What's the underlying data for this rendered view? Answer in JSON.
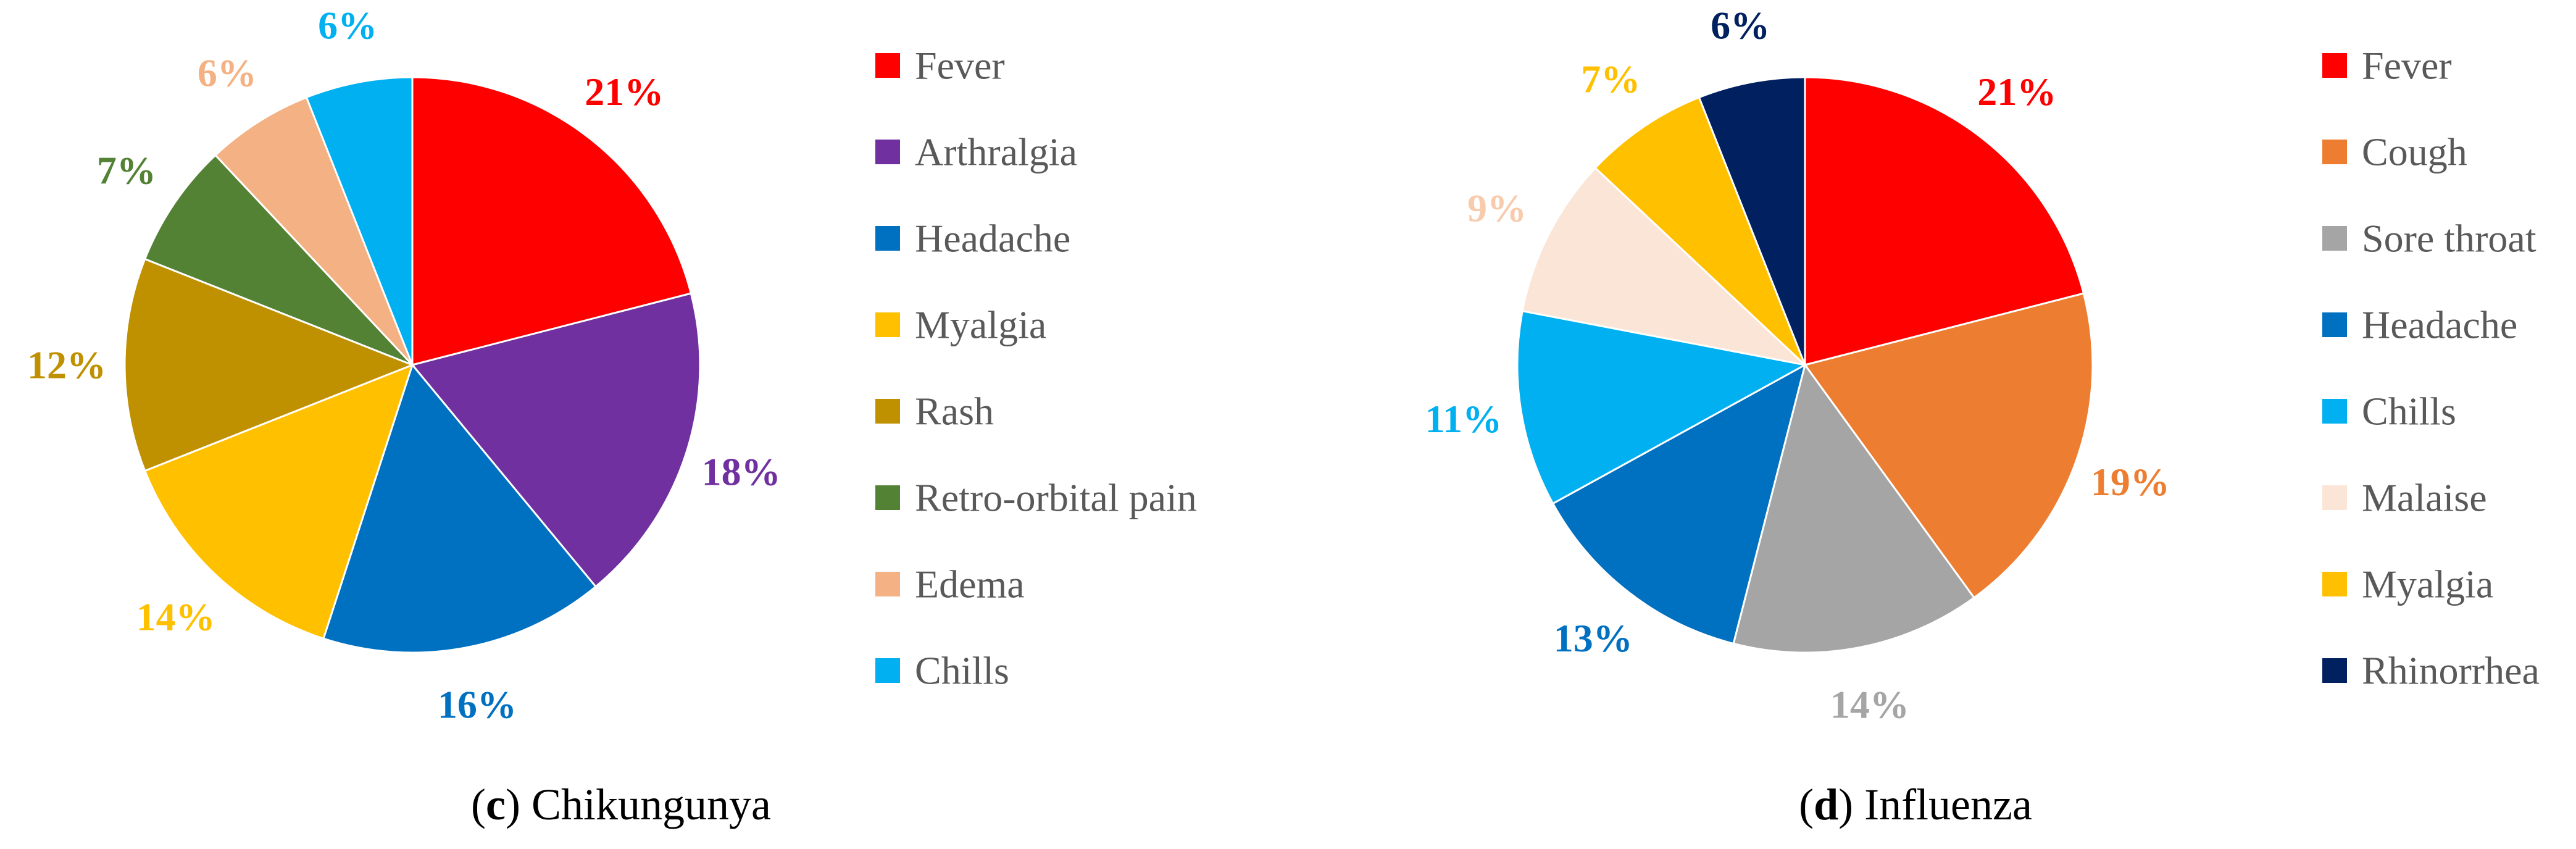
{
  "chart_data": [
    {
      "type": "pie",
      "caption_letter": "c",
      "caption_title": "Chikungunya",
      "categories": [
        "Fever",
        "Arthralgia",
        "Headache",
        "Myalgia",
        "Rash",
        "Retro-orbital pain",
        "Edema",
        "Chills"
      ],
      "values": [
        21,
        18,
        16,
        14,
        12,
        7,
        6,
        6
      ],
      "value_labels": [
        "21%",
        "18%",
        "16%",
        "14%",
        "12%",
        "7%",
        "6%",
        "6%"
      ],
      "colors": [
        "#FF0000",
        "#7030A0",
        "#0070C0",
        "#FFC000",
        "#BF9000",
        "#548235",
        "#F4B183",
        "#00B0F0"
      ],
      "legend_position": "right"
    },
    {
      "type": "pie",
      "caption_letter": "d",
      "caption_title": "Influenza",
      "categories": [
        "Fever",
        "Cough",
        "Sore throat",
        "Headache",
        "Chills",
        "Malaise",
        "Myalgia",
        "Rhinorrhea"
      ],
      "values": [
        21,
        19,
        14,
        13,
        11,
        9,
        7,
        6
      ],
      "value_labels": [
        "21%",
        "19%",
        "14%",
        "13%",
        "11%",
        "9%",
        "7%",
        "6%"
      ],
      "colors": [
        "#FF0000",
        "#ED7D31",
        "#A5A5A5",
        "#0070C0",
        "#00B0F0",
        "#FBE5D6",
        "#FFC000",
        "#002060"
      ],
      "legend_position": "right"
    }
  ]
}
